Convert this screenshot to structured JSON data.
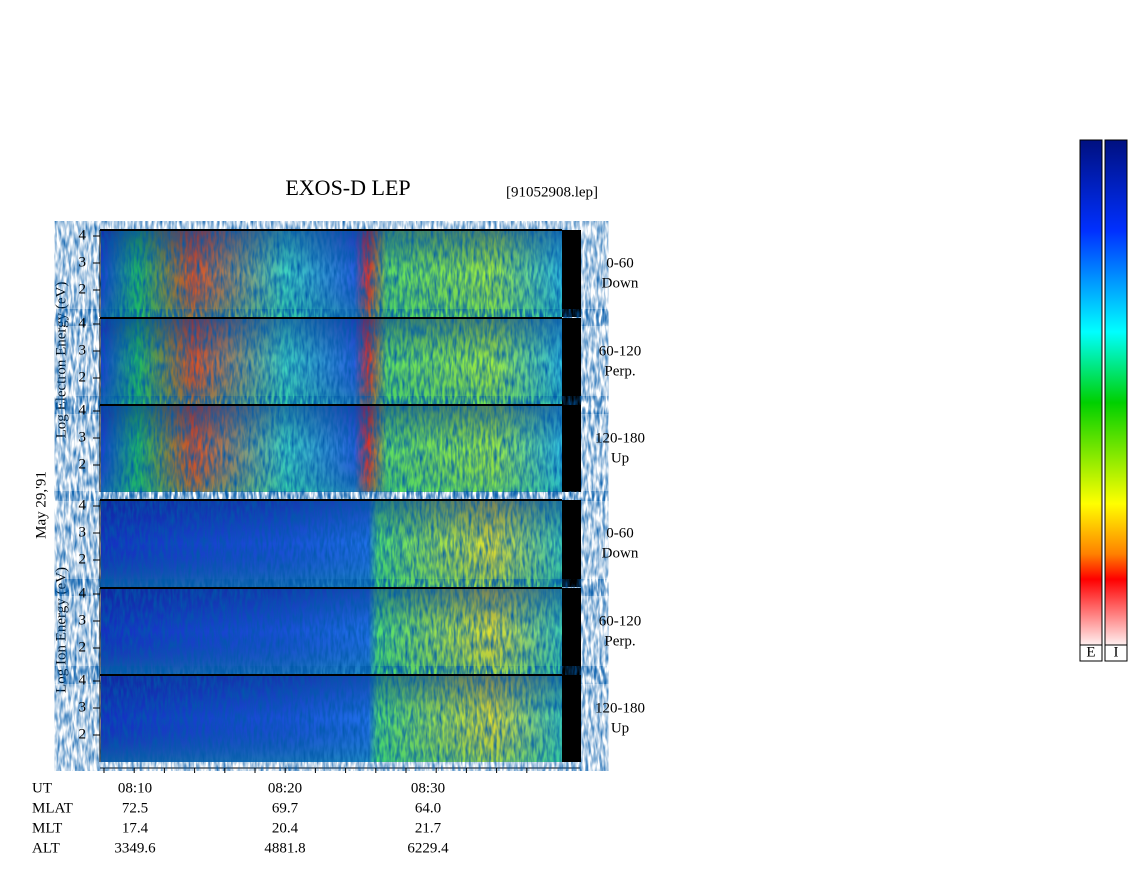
{
  "title": "EXOS-D LEP",
  "file": "[91052908.lep]",
  "date": "May 29,'91",
  "electron_axis": "Log  Electron  Energy  (eV)",
  "ion_axis": "Log  Ion  Energy  (eV)",
  "panels": [
    {
      "range": "0-60",
      "direction": "Down",
      "ticks": [
        "4",
        "3",
        "2"
      ]
    },
    {
      "range": "60-120",
      "direction": "Perp.",
      "ticks": [
        "4",
        "3",
        "2"
      ]
    },
    {
      "range": "120-180",
      "direction": "Up",
      "ticks": [
        "4",
        "3",
        "2"
      ]
    },
    {
      "range": "0-60",
      "direction": "Down",
      "ticks": [
        "4",
        "3",
        "2"
      ]
    },
    {
      "range": "60-120",
      "direction": "Perp.",
      "ticks": [
        "4",
        "3",
        "2"
      ]
    },
    {
      "range": "120-180",
      "direction": "Up",
      "ticks": [
        "4",
        "3",
        "2"
      ]
    }
  ],
  "footer": {
    "rows": [
      [
        "UT",
        "08:10",
        "08:20",
        "08:30"
      ],
      [
        "MLAT",
        "72.5",
        "69.7",
        "64.0"
      ],
      [
        "MLT",
        "17.4",
        "20.4",
        "21.7"
      ],
      [
        "ALT",
        "3349.6",
        "4881.8",
        "6229.4"
      ]
    ]
  },
  "colorbars": [
    "E",
    "I"
  ]
}
